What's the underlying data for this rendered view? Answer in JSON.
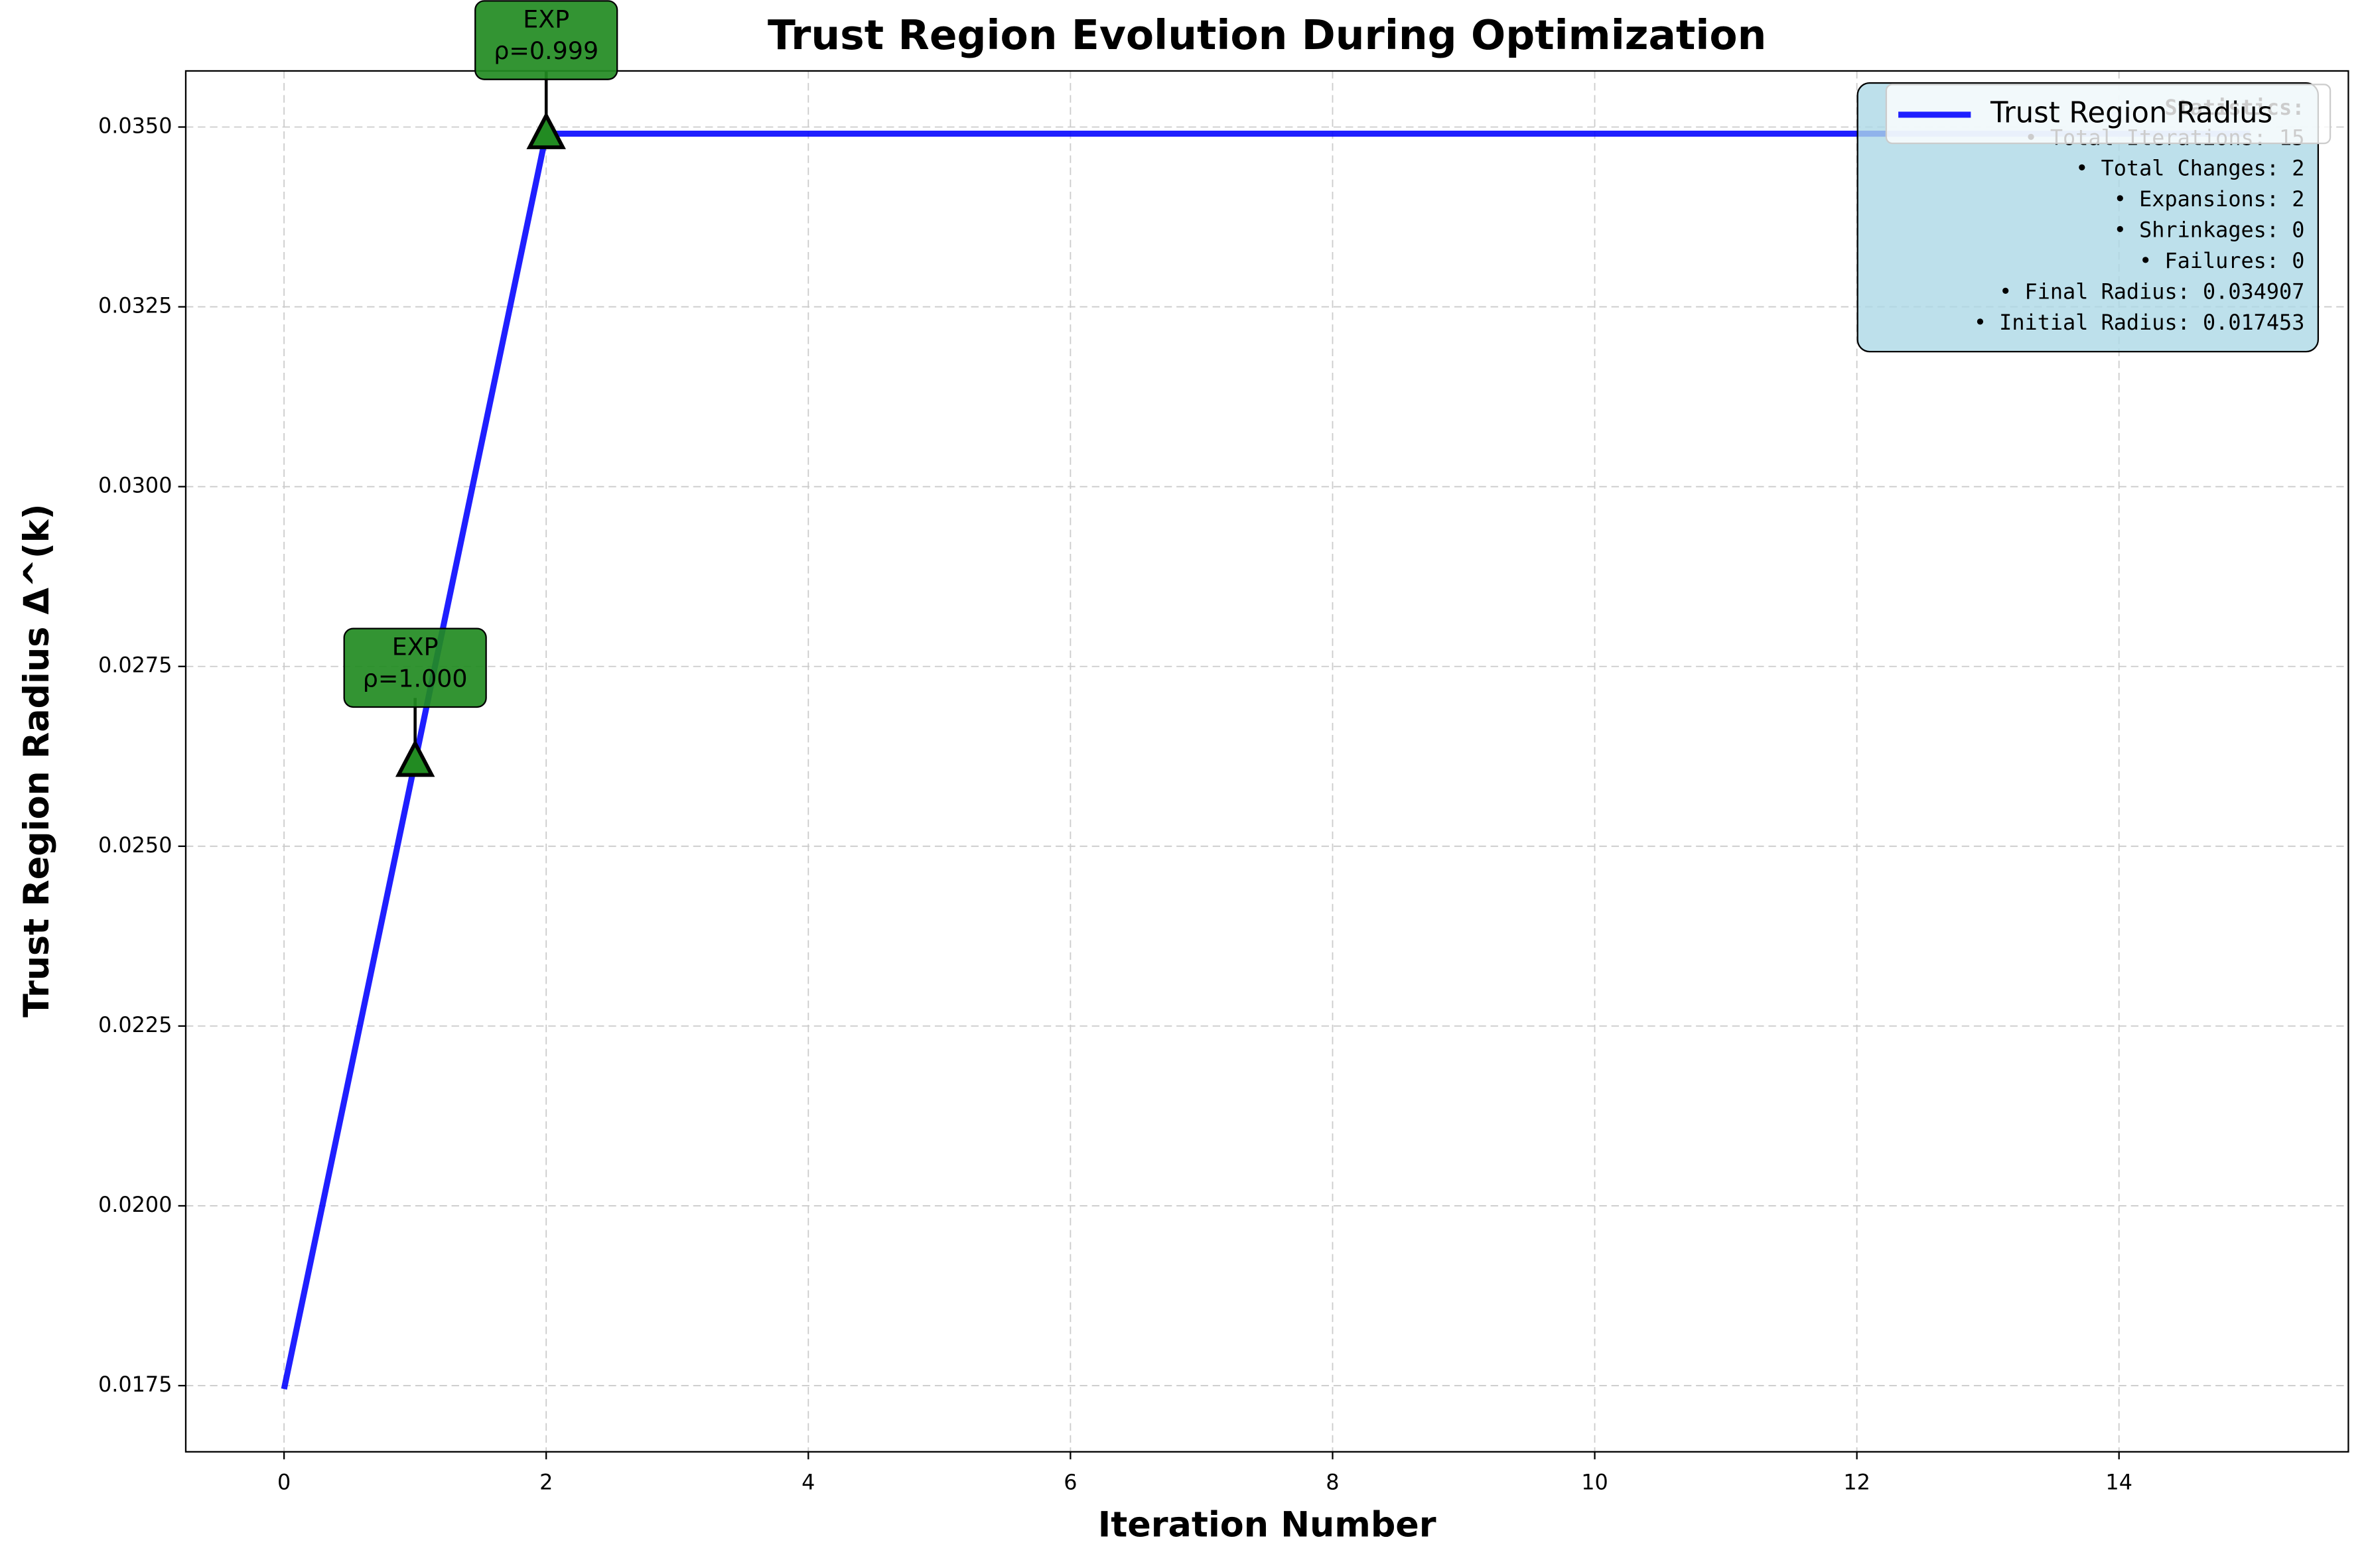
{
  "chart_data": {
    "type": "line",
    "title": "Trust Region Evolution During Optimization",
    "xlabel": "Iteration Number",
    "ylabel": "Trust Region Radius Δ^(k)",
    "x": [
      0,
      1,
      2,
      3,
      4,
      5,
      6,
      7,
      8,
      9,
      10,
      11,
      12,
      13,
      14,
      15
    ],
    "series": [
      {
        "name": "Trust Region Radius",
        "color": "#0000ff",
        "values": [
          0.017453,
          0.02618,
          0.034907,
          0.034907,
          0.034907,
          0.034907,
          0.034907,
          0.034907,
          0.034907,
          0.034907,
          0.034907,
          0.034907,
          0.034907,
          0.034907,
          0.034907,
          0.034907
        ]
      }
    ],
    "annotations": [
      {
        "x": 1,
        "y": 0.02618,
        "lines": [
          "EXP",
          "ρ=1.000"
        ],
        "color": "#228b22"
      },
      {
        "x": 2,
        "y": 0.034907,
        "lines": [
          "EXP",
          "ρ=0.999"
        ],
        "color": "#228b22"
      }
    ],
    "stats": {
      "title": "Statistics:",
      "lines": [
        "• Total Iterations: 15",
        "• Total Changes: 2",
        "• Expansions: 2",
        "• Shrinkages: 0",
        "• Failures: 0",
        "• Final Radius: 0.034907",
        "• Initial Radius: 0.017453"
      ]
    },
    "xlim": [
      -0.75,
      15.75
    ],
    "ylim": [
      0.01658,
      0.03578
    ],
    "xticks": [
      0,
      2,
      4,
      6,
      8,
      10,
      12,
      14
    ],
    "yticks": [
      0.0175,
      {
        "value": 0.02,
        "label": "0.0200"
      },
      0.0225,
      {
        "value": 0.025,
        "label": "0.0250"
      },
      0.0275,
      {
        "value": 0.03,
        "label": "0.0300"
      },
      0.0325,
      {
        "value": 0.035,
        "label": "0.0350"
      }
    ],
    "grid": true,
    "legend": "upper right"
  }
}
